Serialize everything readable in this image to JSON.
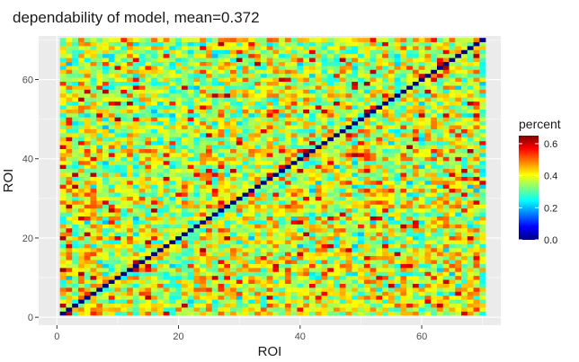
{
  "chart_data": {
    "type": "heatmap",
    "title": "dependability of model, mean=0.372",
    "xlabel": "ROI",
    "ylabel": "ROI",
    "n_rows": 70,
    "n_cols": 70,
    "xlim": [
      -3,
      73
    ],
    "ylim": [
      -2,
      71
    ],
    "x_ticks": [
      0,
      20,
      40,
      60
    ],
    "y_ticks": [
      0,
      20,
      40,
      60
    ],
    "value_range": [
      0.0,
      0.65
    ],
    "mean": 0.372,
    "diagonal_value": 0.0,
    "colorscale": [
      "#00007f",
      "#0000ff",
      "#007fff",
      "#00ffff",
      "#7fff7f",
      "#ffff00",
      "#ff7f00",
      "#ff0000",
      "#7f0000"
    ],
    "legend": {
      "title": "percent",
      "ticks": [
        0.0,
        0.2,
        0.4,
        0.6
      ],
      "tick_labels": [
        "0.0",
        "0.2",
        "0.4",
        "0.6"
      ]
    },
    "panel_background": "#ebebeb",
    "grid": true,
    "legend_position": "right"
  }
}
